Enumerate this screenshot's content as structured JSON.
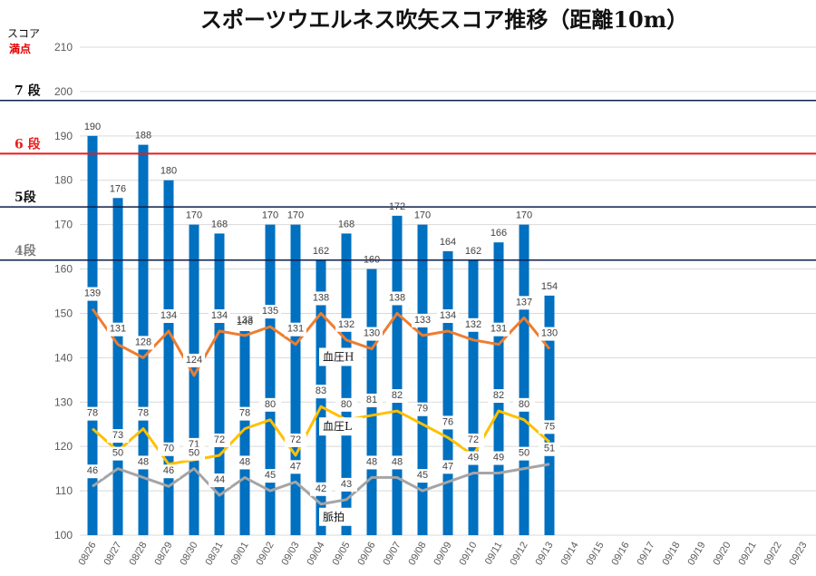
{
  "chart_data": {
    "type": "bar",
    "title": "スポーツウエルネス吹矢スコア推移（距離10m）",
    "ylabel_line1": "スコア",
    "ylabel_line2": "満点",
    "ylim": [
      100,
      210
    ],
    "yticks": [
      100,
      110,
      120,
      130,
      140,
      150,
      160,
      170,
      180,
      190,
      200,
      210
    ],
    "grid": true,
    "categories": [
      "08/26",
      "08/27",
      "08/28",
      "08/29",
      "08/30",
      "08/31",
      "09/01",
      "09/02",
      "09/03",
      "09/04",
      "09/05",
      "09/06",
      "09/07",
      "09/08",
      "09/09",
      "09/10",
      "09/11",
      "09/12",
      "09/13",
      "09/14",
      "09/15",
      "09/16",
      "09/17",
      "09/18",
      "09/19",
      "09/20",
      "09/21",
      "09/22",
      "09/23"
    ],
    "scores": [
      190,
      176,
      188,
      180,
      170,
      168,
      146,
      170,
      170,
      162,
      168,
      160,
      172,
      170,
      164,
      162,
      166,
      170,
      154
    ],
    "lines": [
      {
        "name": "血圧H",
        "color": "#ed7d31",
        "values": [
          139,
          131,
          128,
          134,
          124,
          134,
          133,
          135,
          131,
          138,
          132,
          130,
          138,
          133,
          134,
          132,
          131,
          137,
          130
        ]
      },
      {
        "name": "血圧L",
        "color": "#ffc000",
        "values": [
          78,
          73,
          78,
          70,
          71,
          72,
          78,
          80,
          72,
          83,
          80,
          81,
          82,
          79,
          76,
          72,
          82,
          80,
          75
        ]
      },
      {
        "name": "脈拍",
        "color": "#a5a5a5",
        "values": [
          46,
          50,
          48,
          46,
          50,
          44,
          48,
          45,
          47,
          42,
          43,
          48,
          48,
          45,
          47,
          49,
          49,
          50,
          51
        ]
      }
    ],
    "thresholds": [
      {
        "label": "7 段",
        "value": 198,
        "color": "#0d1f4c",
        "text_color": "#111111"
      },
      {
        "label": "6 段",
        "value": 186,
        "color": "#e81c1c",
        "text_color": "#e81c1c"
      },
      {
        "label": "5段",
        "value": 174,
        "color": "#0d1f4c",
        "text_color": "#111111"
      },
      {
        "label": "4段",
        "value": 162,
        "color": "#0d1f4c",
        "text_color": "#808080"
      }
    ],
    "bar_color": "#0070c0"
  }
}
